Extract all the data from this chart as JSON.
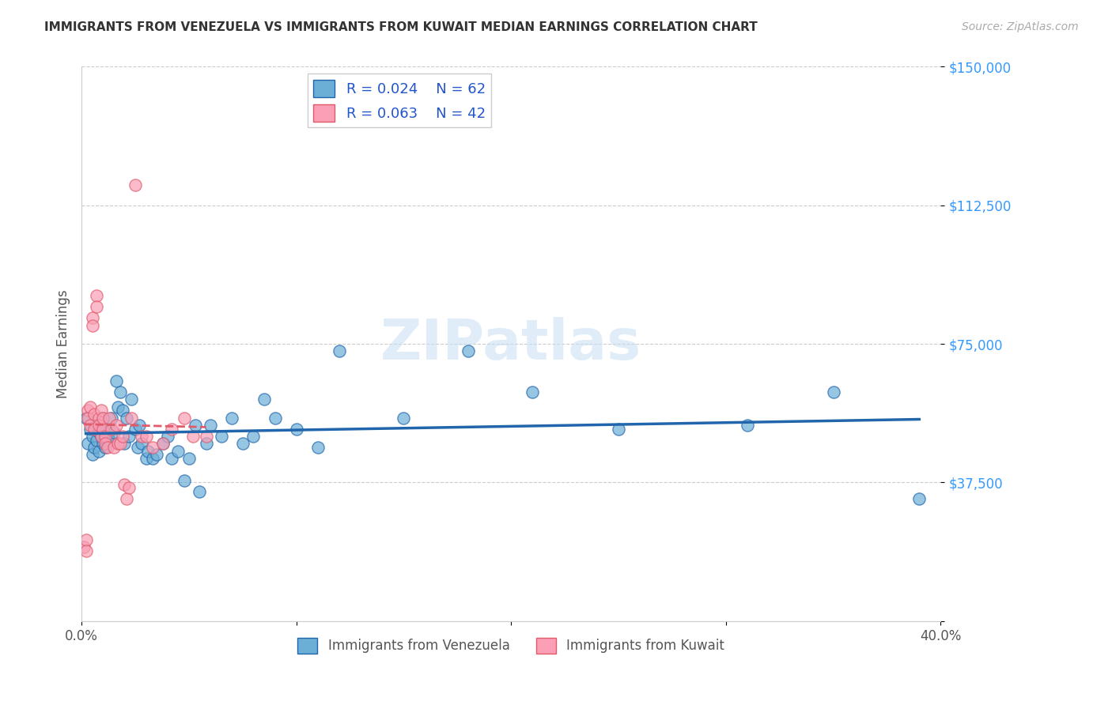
{
  "title": "IMMIGRANTS FROM VENEZUELA VS IMMIGRANTS FROM KUWAIT MEDIAN EARNINGS CORRELATION CHART",
  "source": "Source: ZipAtlas.com",
  "xlabel": "",
  "ylabel": "Median Earnings",
  "xlim": [
    0.0,
    0.4
  ],
  "ylim": [
    0,
    150000
  ],
  "yticks": [
    0,
    37500,
    75000,
    112500,
    150000
  ],
  "ytick_labels": [
    "",
    "$37,500",
    "$75,000",
    "$112,500",
    "$150,000"
  ],
  "xticks": [
    0.0,
    0.1,
    0.2,
    0.3,
    0.4
  ],
  "xtick_labels": [
    "0.0%",
    "",
    "",
    "",
    "40.0%"
  ],
  "watermark": "ZIPatlas",
  "legend_r_venezuela": "R = 0.024",
  "legend_n_venezuela": "N = 62",
  "legend_r_kuwait": "R = 0.063",
  "legend_n_kuwait": "N = 42",
  "color_venezuela": "#6baed6",
  "color_kuwait": "#fa9fb5",
  "trendline_color_venezuela": "#2166ac",
  "trendline_color_kuwait": "#e05a6a",
  "venezuela_x": [
    0.002,
    0.003,
    0.004,
    0.005,
    0.005,
    0.006,
    0.007,
    0.007,
    0.008,
    0.008,
    0.009,
    0.009,
    0.01,
    0.01,
    0.011,
    0.011,
    0.012,
    0.013,
    0.014,
    0.015,
    0.016,
    0.017,
    0.018,
    0.019,
    0.02,
    0.021,
    0.022,
    0.023,
    0.025,
    0.026,
    0.027,
    0.028,
    0.03,
    0.031,
    0.033,
    0.035,
    0.038,
    0.04,
    0.042,
    0.045,
    0.048,
    0.05,
    0.053,
    0.055,
    0.058,
    0.06,
    0.065,
    0.07,
    0.075,
    0.08,
    0.085,
    0.09,
    0.1,
    0.11,
    0.12,
    0.15,
    0.18,
    0.21,
    0.25,
    0.31,
    0.35,
    0.39
  ],
  "venezuela_y": [
    55000,
    48000,
    52000,
    50000,
    45000,
    47000,
    53000,
    49000,
    51000,
    46000,
    50000,
    54000,
    48000,
    55000,
    52000,
    47000,
    50000,
    49000,
    55000,
    51000,
    65000,
    58000,
    62000,
    57000,
    48000,
    55000,
    50000,
    60000,
    52000,
    47000,
    53000,
    48000,
    44000,
    46000,
    44000,
    45000,
    48000,
    50000,
    44000,
    46000,
    38000,
    44000,
    53000,
    35000,
    48000,
    53000,
    50000,
    55000,
    48000,
    50000,
    60000,
    55000,
    52000,
    47000,
    73000,
    55000,
    73000,
    62000,
    52000,
    53000,
    62000,
    33000
  ],
  "kuwait_x": [
    0.001,
    0.002,
    0.002,
    0.003,
    0.003,
    0.004,
    0.004,
    0.005,
    0.005,
    0.006,
    0.006,
    0.007,
    0.007,
    0.008,
    0.008,
    0.009,
    0.009,
    0.01,
    0.01,
    0.011,
    0.011,
    0.012,
    0.013,
    0.014,
    0.015,
    0.016,
    0.017,
    0.018,
    0.019,
    0.02,
    0.021,
    0.022,
    0.023,
    0.025,
    0.028,
    0.03,
    0.033,
    0.038,
    0.042,
    0.048,
    0.052,
    0.058
  ],
  "kuwait_y": [
    20000,
    22000,
    19000,
    57000,
    55000,
    58000,
    53000,
    82000,
    80000,
    56000,
    52000,
    88000,
    85000,
    55000,
    53000,
    57000,
    50000,
    52000,
    55000,
    50000,
    48000,
    47000,
    55000,
    52000,
    47000,
    53000,
    48000,
    48000,
    50000,
    37000,
    33000,
    36000,
    55000,
    118000,
    50000,
    50000,
    47000,
    48000,
    52000,
    55000,
    50000,
    50000
  ]
}
